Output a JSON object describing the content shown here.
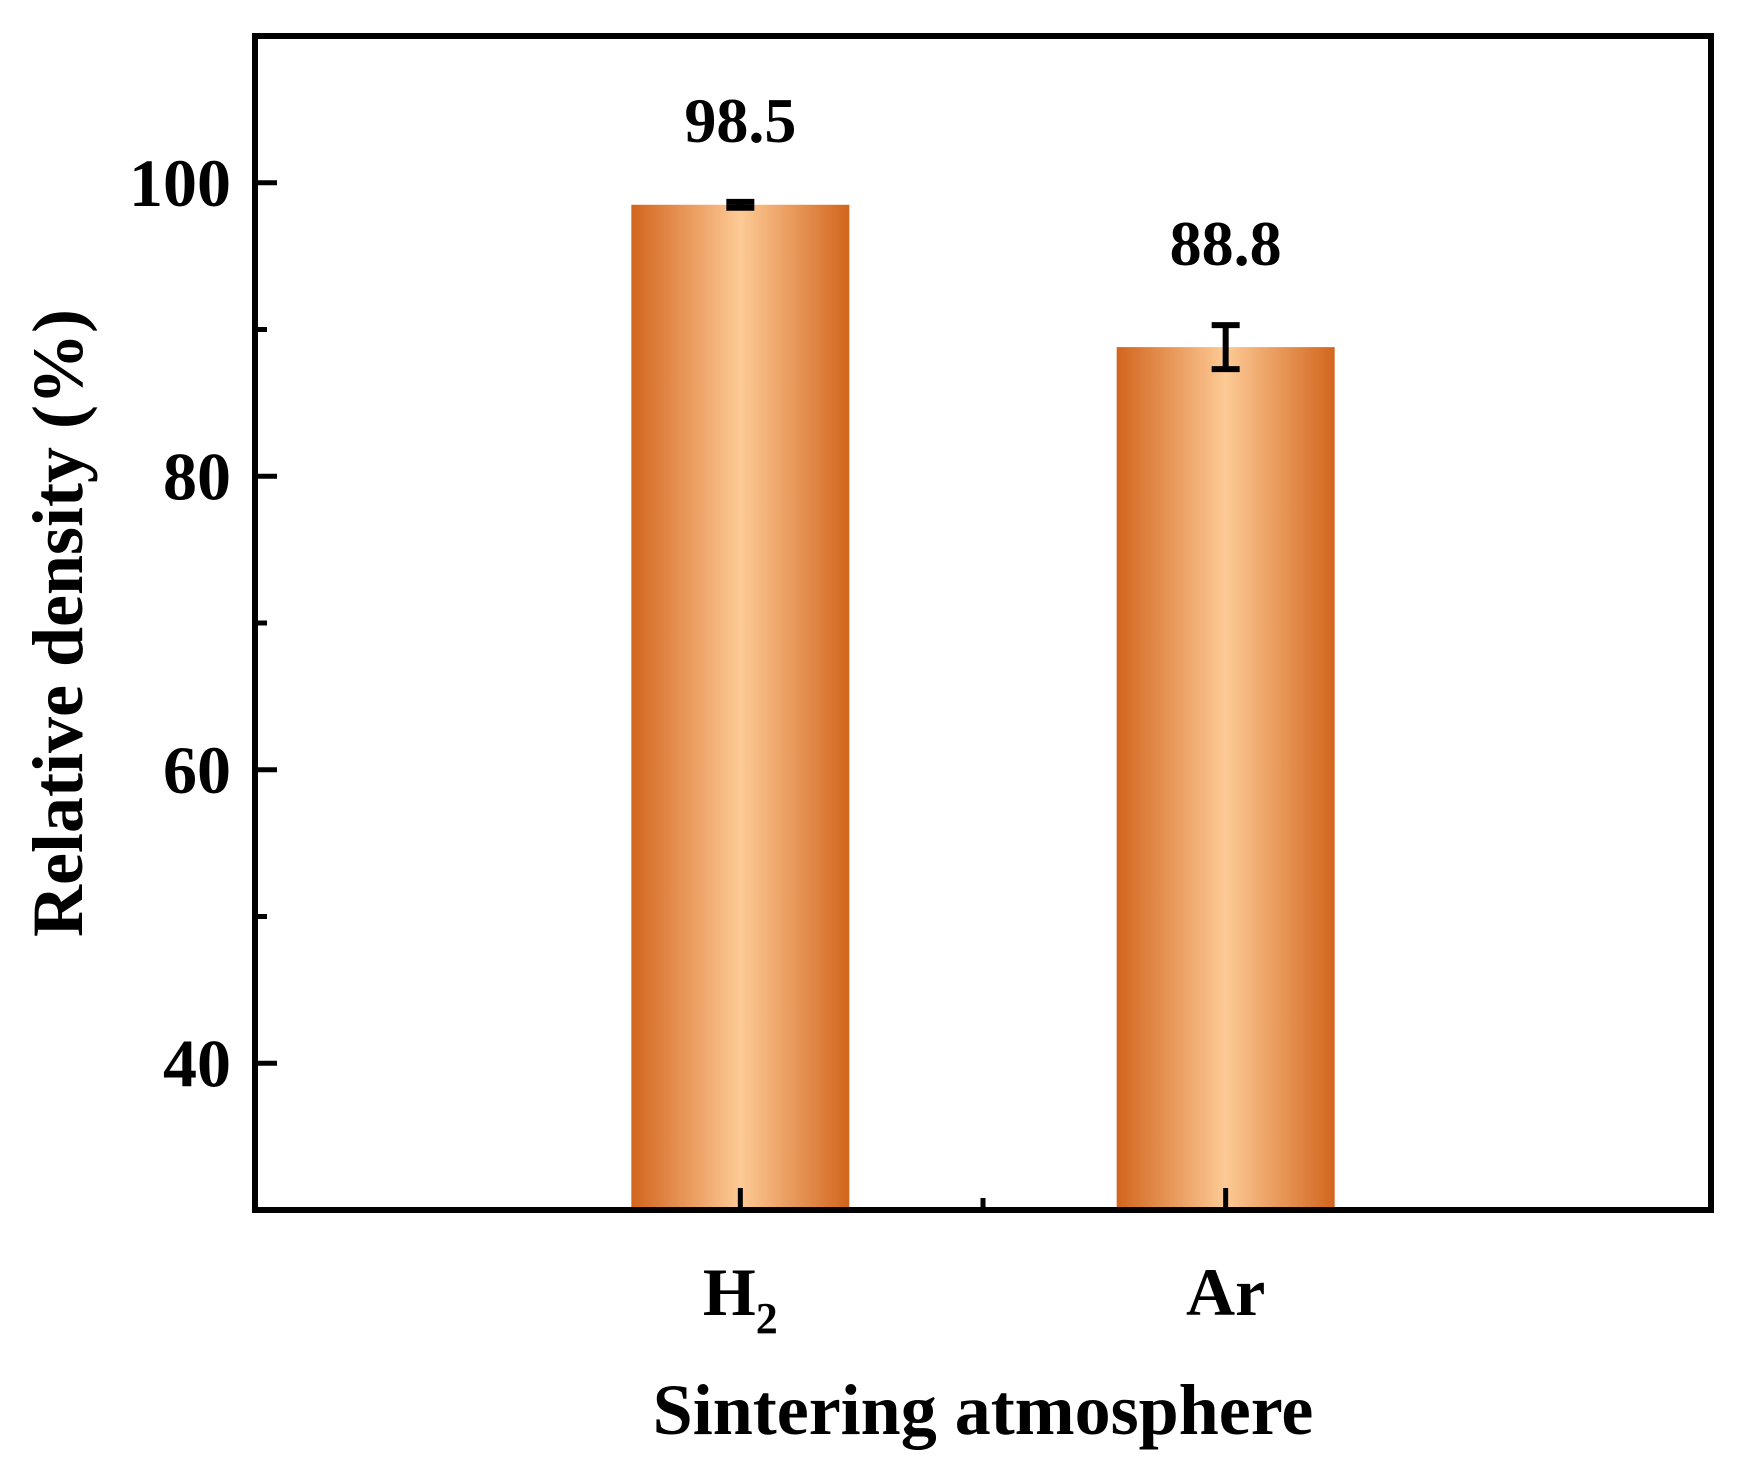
{
  "chart_data": {
    "type": "bar",
    "categories": [
      "H2",
      "Ar"
    ],
    "category_labels": [
      {
        "main": "H",
        "sub": "2"
      },
      {
        "main": "Ar",
        "sub": ""
      }
    ],
    "values": [
      98.5,
      88.8
    ],
    "errors": [
      0.2,
      1.5
    ],
    "data_labels": [
      "98.5",
      "88.8"
    ],
    "xlabel": "Sintering atmosphere",
    "ylabel": "Relative density (%)",
    "ylim": [
      30,
      110
    ],
    "yticks_major": [
      40,
      60,
      80,
      100
    ],
    "ytick_labels": [
      "40",
      "60",
      "80",
      "100"
    ],
    "yticks_minor": [
      50,
      70,
      90
    ],
    "grid": false,
    "bar_colors": {
      "edge": "#d2651d",
      "center": "#fdca95"
    }
  }
}
